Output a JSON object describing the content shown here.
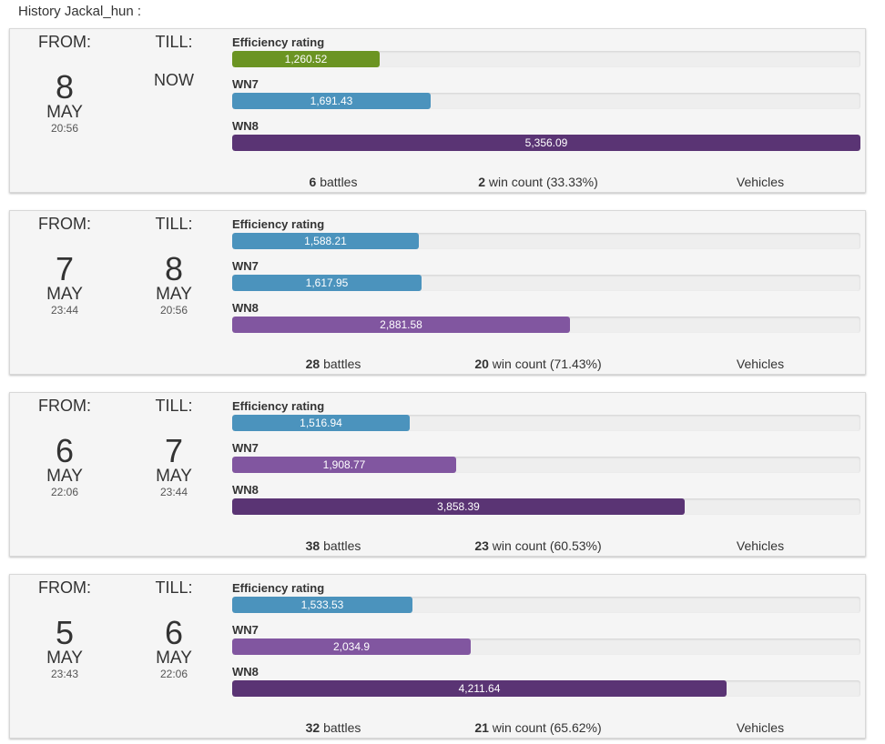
{
  "page": {
    "title": "History Jackal_hun :"
  },
  "labels": {
    "from": "FROM:",
    "till": "TILL:",
    "battles_suffix": "battles",
    "wins_suffix": "win count",
    "vehicles": "Vehicles",
    "efficiency": "Efficiency rating",
    "wn7": "WN7",
    "wn8": "WN8"
  },
  "scale_max": 5356.09,
  "colors": {
    "green": "#6b9423",
    "blue": "#4b93bd",
    "purple": "#8156a0",
    "dark_purple": "#5a3474"
  },
  "entries": [
    {
      "from": {
        "day": "8",
        "month": "MAY",
        "time": "20:56"
      },
      "till": {
        "now": "NOW"
      },
      "metrics": [
        {
          "key": "efficiency",
          "value": 1260.52,
          "text": "1,260.52",
          "color": "green"
        },
        {
          "key": "wn7",
          "value": 1691.43,
          "text": "1,691.43",
          "color": "blue"
        },
        {
          "key": "wn8",
          "value": 5356.09,
          "text": "5,356.09",
          "color": "dark_purple"
        }
      ],
      "battles": "6",
      "wins": "2",
      "win_pct": "(33.33%)"
    },
    {
      "from": {
        "day": "7",
        "month": "MAY",
        "time": "23:44"
      },
      "till": {
        "day": "8",
        "month": "MAY",
        "time": "20:56"
      },
      "metrics": [
        {
          "key": "efficiency",
          "value": 1588.21,
          "text": "1,588.21",
          "color": "blue"
        },
        {
          "key": "wn7",
          "value": 1617.95,
          "text": "1,617.95",
          "color": "blue"
        },
        {
          "key": "wn8",
          "value": 2881.58,
          "text": "2,881.58",
          "color": "purple"
        }
      ],
      "battles": "28",
      "wins": "20",
      "win_pct": "(71.43%)"
    },
    {
      "from": {
        "day": "6",
        "month": "MAY",
        "time": "22:06"
      },
      "till": {
        "day": "7",
        "month": "MAY",
        "time": "23:44"
      },
      "metrics": [
        {
          "key": "efficiency",
          "value": 1516.94,
          "text": "1,516.94",
          "color": "blue"
        },
        {
          "key": "wn7",
          "value": 1908.77,
          "text": "1,908.77",
          "color": "purple"
        },
        {
          "key": "wn8",
          "value": 3858.39,
          "text": "3,858.39",
          "color": "dark_purple"
        }
      ],
      "battles": "38",
      "wins": "23",
      "win_pct": "(60.53%)"
    },
    {
      "from": {
        "day": "5",
        "month": "MAY",
        "time": "23:43"
      },
      "till": {
        "day": "6",
        "month": "MAY",
        "time": "22:06"
      },
      "metrics": [
        {
          "key": "efficiency",
          "value": 1533.53,
          "text": "1,533.53",
          "color": "blue"
        },
        {
          "key": "wn7",
          "value": 2034.9,
          "text": "2,034.9",
          "color": "purple"
        },
        {
          "key": "wn8",
          "value": 4211.64,
          "text": "4,211.64",
          "color": "dark_purple"
        }
      ],
      "battles": "32",
      "wins": "21",
      "win_pct": "(65.62%)"
    }
  ]
}
